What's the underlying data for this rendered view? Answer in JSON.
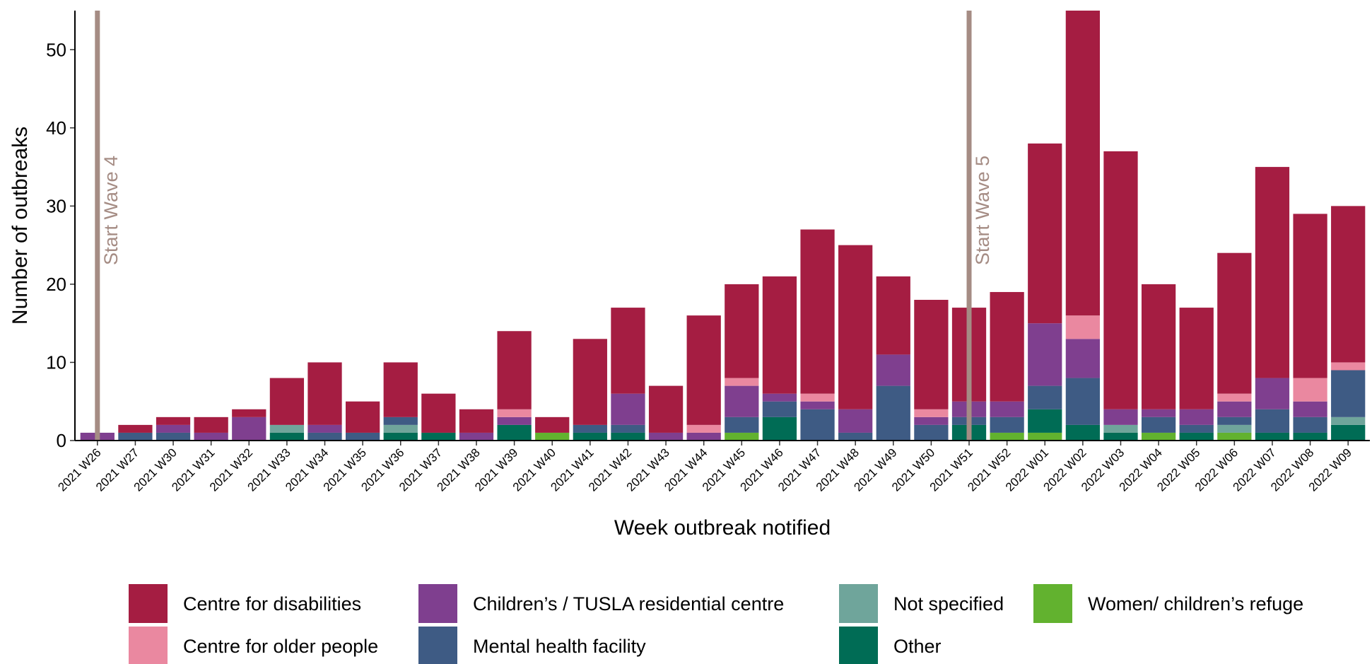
{
  "chart_data": {
    "type": "stacked_bar",
    "x_label": "Week outbreak notified",
    "y_label": "Number of outbreaks",
    "categories": [
      "2021 W26",
      "2021 W27",
      "2021 W30",
      "2021 W31",
      "2021 W32",
      "2021 W33",
      "2021 W34",
      "2021 W35",
      "2021 W36",
      "2021 W37",
      "2021 W38",
      "2021 W39",
      "2021 W40",
      "2021 W41",
      "2021 W42",
      "2021 W43",
      "2021 W44",
      "2021 W45",
      "2021 W46",
      "2021 W47",
      "2021 W48",
      "2021 W49",
      "2021 W50",
      "2021 W51",
      "2021 W52",
      "2022 W01",
      "2022 W02",
      "2022 W03",
      "2022 W04",
      "2022 W05",
      "2022 W06",
      "2022 W07",
      "2022 W08",
      "2022 W09"
    ],
    "series": [
      {
        "name": "Centre for disabilities",
        "color": "#a51d42",
        "values": [
          0,
          1,
          1,
          2,
          1,
          6,
          8,
          4,
          7,
          5,
          3,
          10,
          2,
          11,
          11,
          6,
          14,
          12,
          15,
          21,
          21,
          10,
          14,
          12,
          14,
          23,
          39,
          33,
          16,
          13,
          18,
          27,
          21,
          20
        ]
      },
      {
        "name": "Centre for older people",
        "color": "#ea88a0",
        "values": [
          0,
          0,
          0,
          0,
          0,
          0,
          0,
          0,
          0,
          0,
          0,
          1,
          0,
          0,
          0,
          0,
          1,
          1,
          0,
          1,
          0,
          0,
          1,
          0,
          0,
          0,
          3,
          0,
          0,
          0,
          1,
          0,
          3,
          1
        ]
      },
      {
        "name": "Children’s / TUSLA residential centre",
        "color": "#7f3f8f",
        "values": [
          1,
          0,
          1,
          1,
          3,
          0,
          1,
          0,
          0,
          0,
          1,
          1,
          0,
          0,
          4,
          1,
          1,
          4,
          1,
          1,
          3,
          4,
          1,
          2,
          2,
          8,
          5,
          2,
          1,
          2,
          2,
          4,
          2,
          0
        ]
      },
      {
        "name": "Mental health facility",
        "color": "#3e5b84",
        "values": [
          0,
          1,
          1,
          0,
          0,
          0,
          1,
          1,
          1,
          0,
          0,
          0,
          0,
          1,
          1,
          0,
          0,
          2,
          2,
          4,
          1,
          7,
          2,
          1,
          2,
          3,
          6,
          0,
          2,
          1,
          1,
          3,
          2,
          6
        ]
      },
      {
        "name": "Not specified",
        "color": "#6fa59b",
        "values": [
          0,
          0,
          0,
          0,
          0,
          1,
          0,
          0,
          1,
          0,
          0,
          0,
          0,
          0,
          0,
          0,
          0,
          0,
          0,
          0,
          0,
          0,
          0,
          0,
          0,
          0,
          0,
          1,
          0,
          0,
          1,
          0,
          0,
          1
        ]
      },
      {
        "name": "Other",
        "color": "#006c55",
        "values": [
          0,
          0,
          0,
          0,
          0,
          1,
          0,
          0,
          1,
          1,
          0,
          2,
          0,
          1,
          1,
          0,
          0,
          0,
          3,
          0,
          0,
          0,
          0,
          2,
          0,
          3,
          2,
          1,
          0,
          1,
          0,
          1,
          1,
          2
        ]
      },
      {
        "name": "Women/ children’s refuge",
        "color": "#62b22f",
        "values": [
          0,
          0,
          0,
          0,
          0,
          0,
          0,
          0,
          0,
          0,
          0,
          0,
          1,
          0,
          0,
          0,
          0,
          1,
          0,
          0,
          0,
          0,
          0,
          0,
          1,
          1,
          0,
          0,
          1,
          0,
          1,
          0,
          0,
          0
        ]
      }
    ],
    "ylim": [
      0,
      55
    ],
    "yticks": [
      0,
      10,
      20,
      30,
      40,
      50
    ],
    "annotations": [
      {
        "text": "Start Wave 4",
        "category": "2021 W26"
      },
      {
        "text": "Start Wave 5",
        "category": "2021 W51"
      }
    ],
    "annotation_color": "#a58c84"
  }
}
